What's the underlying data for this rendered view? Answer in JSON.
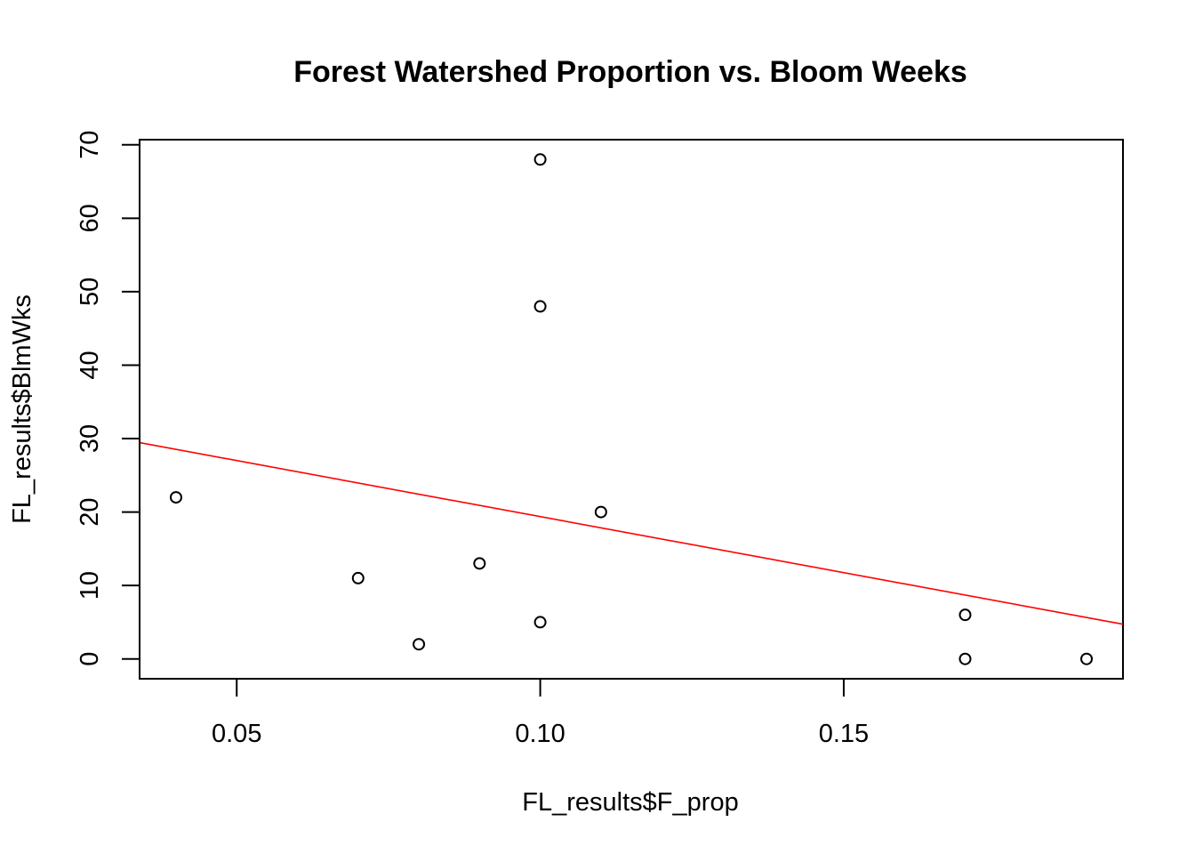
{
  "chart_data": {
    "type": "scatter",
    "title": "Forest Watershed Proportion vs. Bloom Weeks",
    "xlabel": "FL_results$F_prop",
    "ylabel": "FL_results$BlmWks",
    "xlim": [
      0.034,
      0.196
    ],
    "ylim": [
      -2.7,
      70.7
    ],
    "x_ticks": [
      0.05,
      0.1,
      0.15
    ],
    "x_tick_labels": [
      "0.05",
      "0.10",
      "0.15"
    ],
    "y_ticks": [
      0,
      10,
      20,
      30,
      40,
      50,
      60,
      70
    ],
    "y_tick_labels": [
      "0",
      "10",
      "20",
      "30",
      "40",
      "50",
      "60",
      "70"
    ],
    "points": [
      {
        "x": 0.04,
        "y": 22
      },
      {
        "x": 0.07,
        "y": 11
      },
      {
        "x": 0.08,
        "y": 2
      },
      {
        "x": 0.09,
        "y": 13
      },
      {
        "x": 0.1,
        "y": 68
      },
      {
        "x": 0.1,
        "y": 48
      },
      {
        "x": 0.1,
        "y": 5
      },
      {
        "x": 0.11,
        "y": 20
      },
      {
        "x": 0.17,
        "y": 6
      },
      {
        "x": 0.17,
        "y": 0
      },
      {
        "x": 0.19,
        "y": 0
      }
    ],
    "fit_line": {
      "intercept": 34.64,
      "slope": -152.6,
      "color": "#ff0000"
    },
    "point_style": "open-circle",
    "grid": false,
    "legend": "none"
  }
}
